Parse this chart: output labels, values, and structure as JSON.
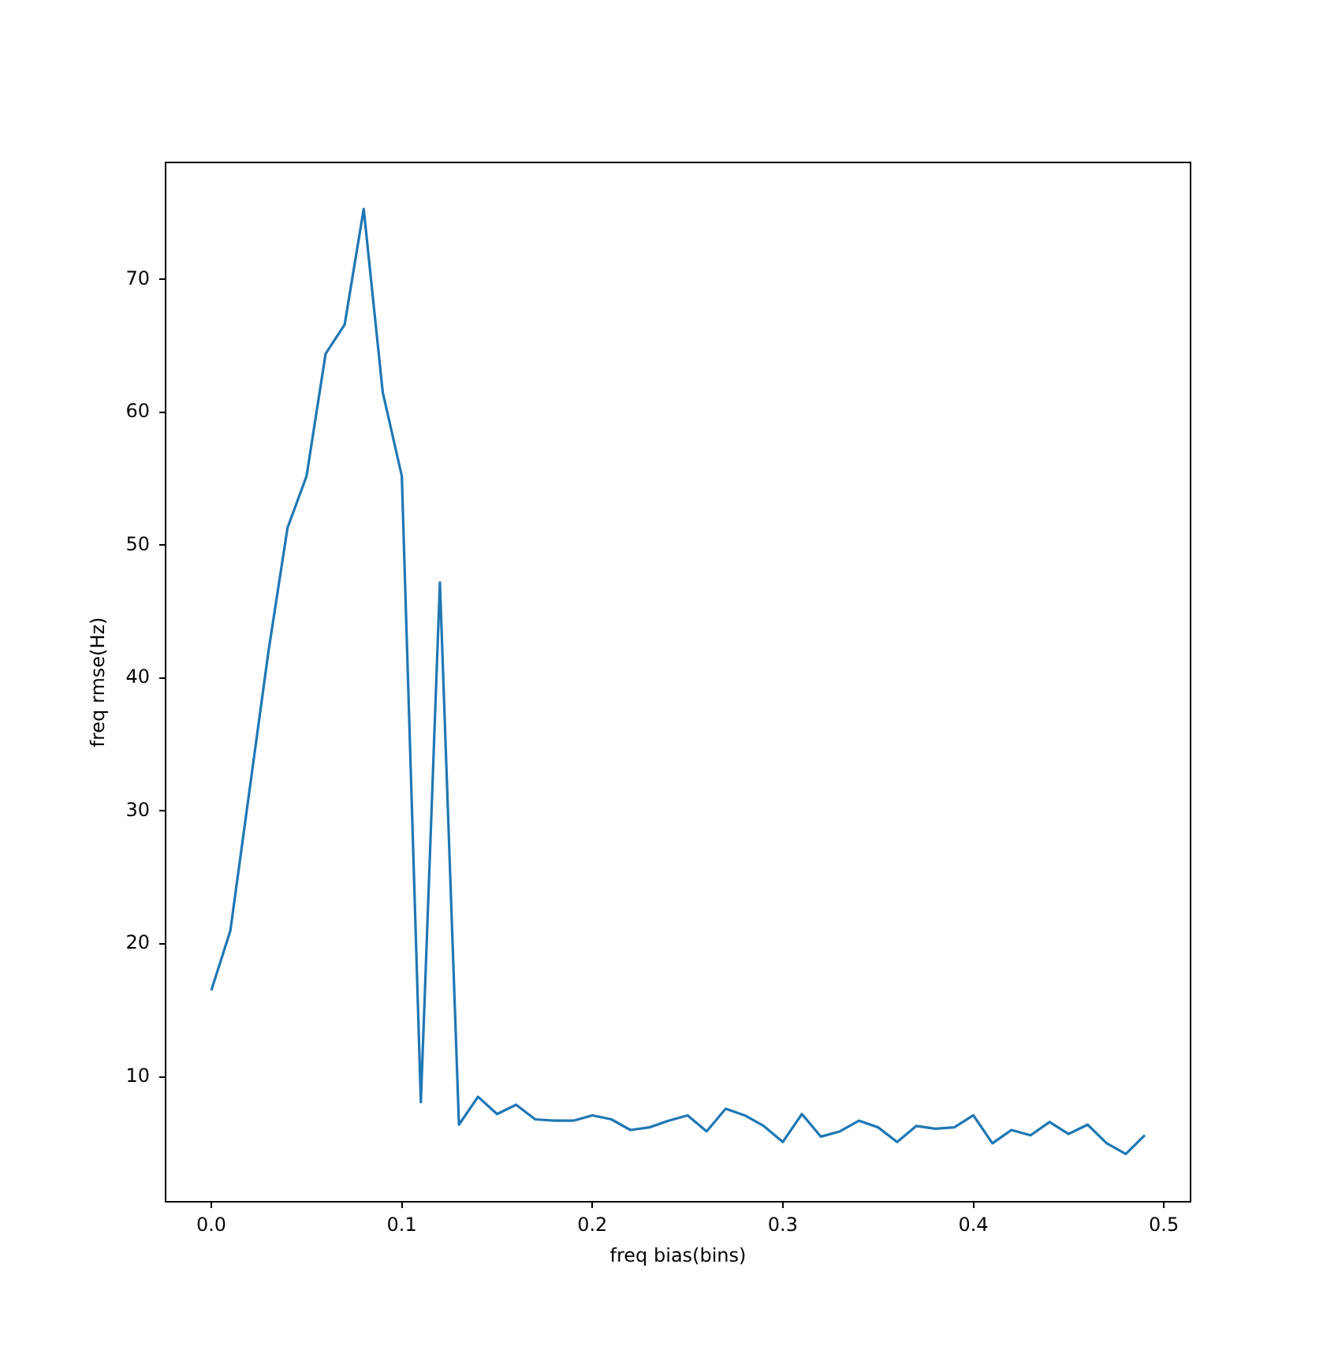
{
  "chart_data": {
    "type": "line",
    "xlabel": "freq bias(bins)",
    "ylabel": "freq rmse(Hz)",
    "x": [
      0,
      0.01,
      0.02,
      0.03,
      0.04,
      0.05,
      0.06,
      0.07,
      0.08,
      0.09,
      0.1,
      0.11,
      0.12,
      0.13,
      0.14,
      0.15,
      0.16,
      0.17,
      0.18,
      0.19,
      0.2,
      0.21,
      0.22,
      0.23,
      0.24,
      0.25,
      0.26,
      0.27,
      0.28,
      0.29,
      0.3,
      0.31,
      0.32,
      0.33,
      0.34,
      0.35,
      0.36,
      0.37,
      0.38,
      0.39,
      0.4,
      0.41,
      0.42,
      0.43,
      0.44,
      0.45,
      0.46,
      0.47,
      0.48,
      0.49
    ],
    "series": [
      {
        "color": "#1f77b4",
        "values": [
          16.5,
          21,
          31.5,
          42,
          51.3,
          55.2,
          64.4,
          66.6,
          75.3,
          61.5,
          55.2,
          8.1,
          47.2,
          6.4,
          8.5,
          7.2,
          7.9,
          6.8,
          6.7,
          6.7,
          7.1,
          6.8,
          6.0,
          6.2,
          6.7,
          7.1,
          5.9,
          7.6,
          7.1,
          6.3,
          5.1,
          7.2,
          5.5,
          5.9,
          6.7,
          6.2,
          5.1,
          6.3,
          6.1,
          6.2,
          7.1,
          5.0,
          6.0,
          5.6,
          6.6,
          5.7,
          6.4,
          5.0,
          4.2,
          5.6
        ]
      }
    ],
    "xlim": [
      -0.024,
      0.514
    ],
    "ylim": [
      0.6,
      78.8
    ],
    "xticks": [
      {
        "value": 0,
        "label": "0.0"
      },
      0.1,
      0.2,
      0.3,
      0.4,
      0.5
    ],
    "yticks": [
      10,
      20,
      30,
      40,
      50,
      60,
      70
    ],
    "grid": false,
    "legend": false,
    "marker": "none",
    "line_style": "solid"
  }
}
